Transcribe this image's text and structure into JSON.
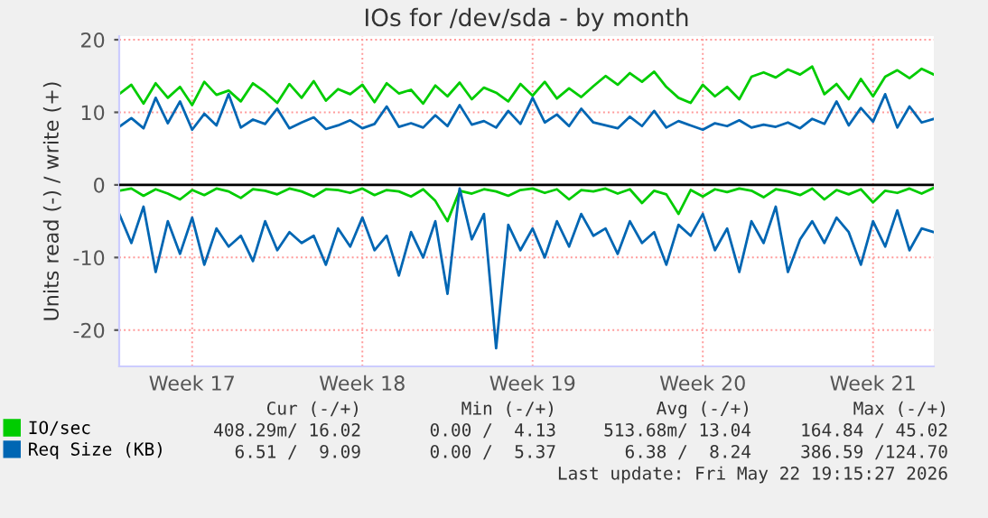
{
  "chart_data": {
    "type": "line",
    "title": "IOs for /dev/sda - by month",
    "ylabel": "Units read (-) / write (+)",
    "categories": [
      null,
      null,
      null,
      null,
      null,
      null,
      "Week 17",
      null,
      null,
      null,
      null,
      null,
      null,
      null,
      null,
      null,
      null,
      null,
      null,
      null,
      "Week 18",
      null,
      null,
      null,
      null,
      null,
      null,
      null,
      null,
      null,
      null,
      null,
      null,
      null,
      "Week 19",
      null,
      null,
      null,
      null,
      null,
      null,
      null,
      null,
      null,
      null,
      null,
      null,
      null,
      "Week 20",
      null,
      null,
      null,
      null,
      null,
      null,
      null,
      null,
      null,
      null,
      null,
      null,
      null,
      "Week 21",
      null,
      null,
      null,
      null,
      null
    ],
    "series": [
      {
        "name": "IO/sec",
        "color": "#00cc00",
        "values": [
          12.5,
          13.8,
          11.2,
          14,
          12,
          13.5,
          11,
          14.2,
          12.4,
          13,
          11.5,
          14,
          12.8,
          11.3,
          13.9,
          12,
          14.3,
          11.6,
          13.2,
          12.5,
          13.8,
          11.4,
          14,
          12.6,
          13.1,
          11.2,
          13.7,
          12.2,
          14.1,
          11.8,
          13.4,
          12.7,
          11.5,
          13.9,
          12.3,
          14.2,
          11.9,
          13.3,
          12.1,
          13.6,
          15,
          13.8,
          15.4,
          14.2,
          15.6,
          13.5,
          12,
          11.3,
          13.8,
          12.2,
          13.5,
          11.8,
          14.9,
          15.5,
          14.8,
          15.9,
          15.2,
          16.3,
          12.5,
          13.9,
          11.8,
          14.6,
          12.2,
          14.9,
          15.8,
          14.7,
          16,
          15.2
        ]
      },
      {
        "color": "#00cc00",
        "values": [
          -0.8,
          -0.5,
          -1.5,
          -0.6,
          -1.2,
          -2,
          -0.7,
          -1.4,
          -0.5,
          -0.9,
          -1.8,
          -0.6,
          -0.8,
          -1.3,
          -0.5,
          -0.9,
          -1.6,
          -0.6,
          -0.7,
          -1.1,
          -0.5,
          -1.4,
          -0.7,
          -0.9,
          -1.6,
          -0.6,
          -2.2,
          -5,
          -0.8,
          -1.2,
          -0.6,
          -0.9,
          -1.5,
          -0.7,
          -0.5,
          -1.1,
          -0.6,
          -2,
          -0.7,
          -0.9,
          -0.5,
          -1.2,
          -0.6,
          -2.5,
          -0.8,
          -1.3,
          -4,
          -0.7,
          -1.6,
          -0.6,
          -1,
          -0.5,
          -0.8,
          -1.7,
          -0.6,
          -0.9,
          -1.4,
          -0.5,
          -2,
          -0.7,
          -1.3,
          -0.6,
          -2.4,
          -0.8,
          -1.1,
          -0.5,
          -1.2,
          -0.4
        ]
      },
      {
        "name": "Req Size (KB)",
        "color": "#0066b3",
        "values": [
          8,
          9.2,
          7.8,
          12,
          8.5,
          11.5,
          7.6,
          9.8,
          8.2,
          12.5,
          7.9,
          9,
          8.4,
          10.5,
          7.8,
          8.6,
          9.3,
          7.7,
          8.2,
          8.9,
          7.8,
          8.4,
          10.8,
          8,
          8.5,
          7.9,
          9.6,
          8.1,
          11,
          8.3,
          8.8,
          7.9,
          10.2,
          8.4,
          12,
          8.6,
          9.7,
          8.1,
          10.5,
          8.6,
          8.2,
          7.8,
          9.4,
          8.1,
          10.2,
          7.9,
          8.8,
          8.2,
          7.6,
          8.5,
          8.1,
          8.9,
          7.9,
          8.3,
          8,
          8.6,
          7.8,
          9.1,
          8.4,
          11.5,
          8.2,
          10.6,
          8.7,
          12.5,
          7.9,
          10.8,
          8.6,
          9.1
        ]
      },
      {
        "color": "#0066b3",
        "values": [
          -4,
          -8,
          -3,
          -12,
          -5,
          -9.5,
          -4.5,
          -11,
          -6,
          -8.5,
          -7,
          -10.5,
          -5,
          -9,
          -6.5,
          -8,
          -7,
          -11,
          -6,
          -8.5,
          -4.5,
          -9,
          -7,
          -12.5,
          -6.5,
          -10,
          -5,
          -15,
          -0.5,
          -7.5,
          -4,
          -22.5,
          -5.5,
          -9,
          -6,
          -10,
          -5,
          -8.5,
          -4,
          -7,
          -6,
          -9.5,
          -5,
          -8,
          -6.5,
          -11,
          -5.5,
          -7,
          -4,
          -9,
          -6,
          -12,
          -5,
          -8,
          -3,
          -12,
          -7.5,
          -5,
          -8,
          -4.5,
          -6.5,
          -11,
          -5,
          -8.5,
          -3.5,
          -9,
          -6,
          -6.5
        ]
      }
    ],
    "ylim": [
      -25,
      20.5
    ],
    "yticks": [
      -20,
      -10,
      0,
      10,
      20
    ],
    "ref_lines": [
      {
        "axis": "y",
        "value": 0,
        "color": "#000000"
      }
    ],
    "grid": true,
    "legend": "bottom",
    "marker": "none",
    "line_style": "solid",
    "annotations": [
      "Cur (-/+)",
      "Min (-/+)",
      "Avg (-/+)",
      "Max (-/+)",
      "408.29m/ 16.02",
      "0.00 /  4.13",
      "513.68m/ 13.04",
      "164.84 / 45.02",
      "6.51 /  9.09",
      "0.00 /  5.37",
      "6.38 /  8.24",
      "386.59 /124.70",
      "Last update: Fri May 22 19:15:27 2026"
    ]
  }
}
